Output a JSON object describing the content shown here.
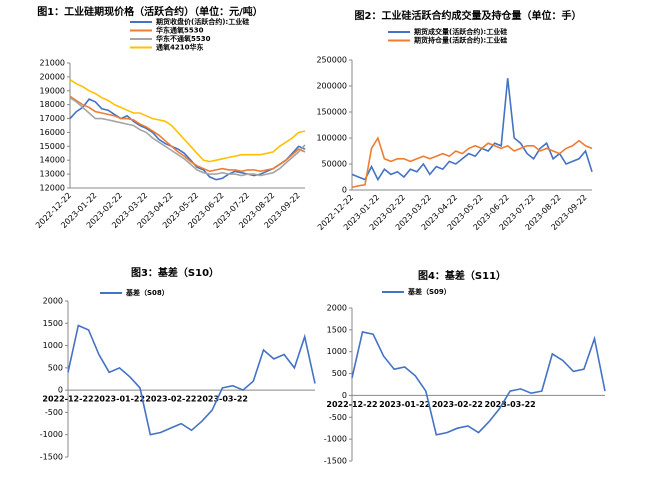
{
  "chart_data": [
    {
      "type": "line",
      "title": "图1：工业硅期现价格（活跃合约）（单位：元/吨）",
      "categories": [
        "2022-12-22",
        null,
        null,
        null,
        "2023-01-22",
        null,
        null,
        null,
        "2023-02-22",
        null,
        null,
        null,
        "2023-03-22",
        null,
        null,
        null,
        "2023-04-22",
        null,
        null,
        null,
        "2023-05-22",
        null,
        null,
        null,
        "2023-06-22",
        null,
        null,
        null,
        "2023-07-22",
        null,
        null,
        null,
        "2023-08-22",
        null,
        null,
        null,
        "2023-09-22",
        null
      ],
      "ylim": [
        12000,
        21000
      ],
      "yticks": [
        12000,
        13000,
        14000,
        15000,
        16000,
        17000,
        18000,
        19000,
        20000,
        21000
      ],
      "series": [
        {
          "name": "期货收盘价(活跃合约):工业硅",
          "color": "#4472c4",
          "values": [
            17000,
            17500,
            17800,
            18400,
            18200,
            17700,
            17600,
            17300,
            17000,
            17200,
            16800,
            16500,
            16300,
            16000,
            15500,
            15200,
            15000,
            14800,
            14500,
            14000,
            13500,
            13300,
            12800,
            12600,
            12700,
            13000,
            13200,
            13100,
            13000,
            12900,
            13000,
            13200,
            13400,
            13700,
            14000,
            14500,
            15000,
            14800
          ]
        },
        {
          "name": "华东通氧5530",
          "color": "#ed7d31",
          "values": [
            18600,
            18300,
            18000,
            17800,
            17500,
            17400,
            17300,
            17200,
            17000,
            17000,
            16900,
            16600,
            16400,
            16100,
            15800,
            15400,
            15000,
            14600,
            14300,
            13900,
            13600,
            13400,
            13200,
            13300,
            13400,
            13300,
            13300,
            13200,
            13300,
            13300,
            13200,
            13300,
            13400,
            13700,
            14000,
            14400,
            14800,
            14600
          ]
        },
        {
          "name": "华东不通氧5530",
          "color": "#a5a5a5",
          "values": [
            18500,
            18200,
            17800,
            17400,
            17000,
            17000,
            16900,
            16800,
            16700,
            16600,
            16500,
            16200,
            16000,
            15600,
            15300,
            15000,
            14700,
            14400,
            14100,
            13700,
            13300,
            13100,
            13000,
            13000,
            13100,
            13000,
            13000,
            12900,
            13000,
            13000,
            12900,
            13000,
            13100,
            13400,
            13800,
            14200,
            14600,
            15100
          ]
        },
        {
          "name": "通氧4210华东",
          "color": "#ffc000",
          "values": [
            19800,
            19500,
            19300,
            19000,
            18800,
            18500,
            18300,
            18000,
            17800,
            17600,
            17400,
            17400,
            17200,
            17000,
            16900,
            16800,
            16500,
            16000,
            15500,
            15000,
            14500,
            14000,
            13900,
            14000,
            14100,
            14200,
            14300,
            14400,
            14400,
            14400,
            14400,
            14500,
            14600,
            15000,
            15300,
            15600,
            16000,
            16100
          ]
        }
      ]
    },
    {
      "type": "line",
      "title": "图2：工业硅活跃合约成交量及持仓量（单位：手）",
      "categories": [
        "2022-12-22",
        null,
        null,
        null,
        "2023-01-22",
        null,
        null,
        null,
        "2023-02-22",
        null,
        null,
        null,
        "2023-03-22",
        null,
        null,
        null,
        "2023-04-22",
        null,
        null,
        null,
        "2023-05-22",
        null,
        null,
        null,
        "2023-06-22",
        null,
        null,
        null,
        "2023-07-22",
        null,
        null,
        null,
        "2023-08-22",
        null,
        null,
        null,
        "2023-09-22",
        null
      ],
      "ylim": [
        0,
        250000
      ],
      "yticks": [
        0,
        50000,
        100000,
        150000,
        200000,
        250000
      ],
      "series": [
        {
          "name": "期货成交量(活跃合约):工业硅",
          "color": "#4472c4",
          "values": [
            30000,
            25000,
            20000,
            45000,
            20000,
            40000,
            30000,
            35000,
            25000,
            40000,
            35000,
            50000,
            30000,
            45000,
            40000,
            55000,
            50000,
            60000,
            70000,
            65000,
            80000,
            75000,
            90000,
            85000,
            215000,
            100000,
            90000,
            70000,
            60000,
            80000,
            90000,
            60000,
            70000,
            50000,
            55000,
            60000,
            75000,
            35000
          ]
        },
        {
          "name": "期货持仓量(活跃合约):工业硅",
          "color": "#ed7d31",
          "values": [
            5000,
            8000,
            10000,
            80000,
            100000,
            60000,
            55000,
            60000,
            60000,
            55000,
            60000,
            65000,
            60000,
            65000,
            70000,
            65000,
            75000,
            70000,
            80000,
            85000,
            80000,
            90000,
            85000,
            80000,
            85000,
            75000,
            80000,
            85000,
            85000,
            75000,
            80000,
            75000,
            70000,
            80000,
            85000,
            95000,
            85000,
            80000
          ]
        }
      ]
    },
    {
      "type": "line",
      "title": "图3：基差（S10）",
      "categories": [
        "2022-12-22",
        null,
        null,
        null,
        null,
        "2023-01-22",
        null,
        null,
        null,
        null,
        "2023-02-22",
        null,
        null,
        null,
        null,
        "2023-03-22",
        null,
        null,
        null,
        null,
        null,
        null,
        null,
        null,
        null
      ],
      "ylim": [
        -1500,
        2000
      ],
      "yticks": [
        -1500,
        -1000,
        -500,
        0,
        500,
        1000,
        1500,
        2000
      ],
      "series": [
        {
          "name": "基差（S08）",
          "color": "#4472c4",
          "values": [
            400,
            1450,
            1350,
            800,
            400,
            500,
            300,
            50,
            -1000,
            -950,
            -850,
            -750,
            -900,
            -700,
            -450,
            50,
            100,
            0,
            200,
            900,
            700,
            800,
            500,
            1200,
            150
          ]
        }
      ]
    },
    {
      "type": "line",
      "title": "图4：基差（S11）",
      "categories": [
        "2022-12-22",
        null,
        null,
        null,
        null,
        "2023-01-22",
        null,
        null,
        null,
        null,
        "2023-02-22",
        null,
        null,
        null,
        null,
        "2023-03-22",
        null,
        null,
        null,
        null,
        null,
        null,
        null,
        null,
        null
      ],
      "ylim": [
        -1500,
        2000
      ],
      "yticks": [
        -1500,
        -1000,
        -500,
        0,
        500,
        1000,
        1500,
        2000
      ],
      "series": [
        {
          "name": "基差（S09）",
          "color": "#4472c4",
          "values": [
            400,
            1450,
            1400,
            900,
            600,
            650,
            450,
            100,
            -900,
            -850,
            -750,
            -700,
            -850,
            -600,
            -300,
            100,
            150,
            50,
            100,
            950,
            800,
            550,
            600,
            1300,
            100
          ]
        }
      ]
    }
  ]
}
